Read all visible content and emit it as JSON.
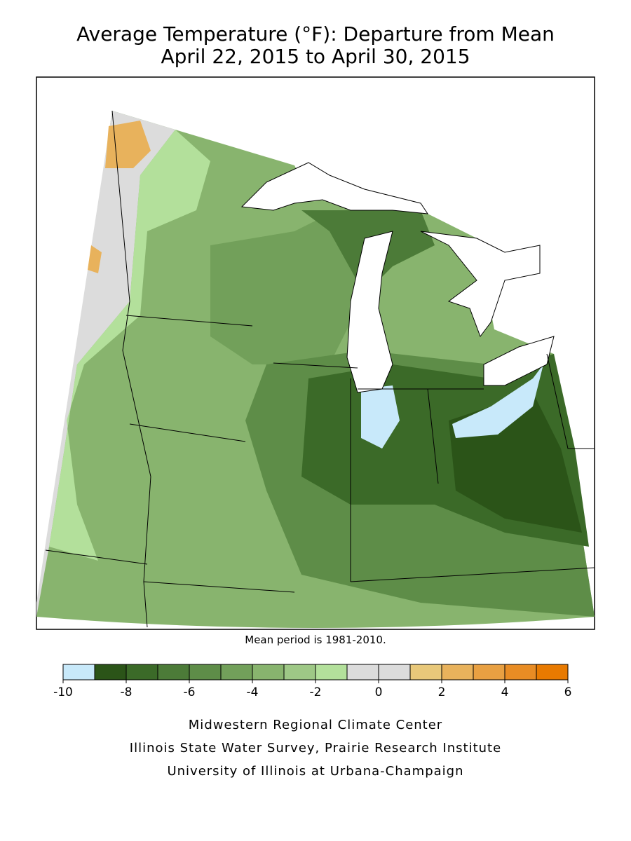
{
  "title": [
    "Average Temperature (°F): Departure from Mean",
    "April 22, 2015 to April 30, 2015"
  ],
  "note": "Mean period is 1981-2010.",
  "legend": {
    "bins": [
      -10,
      -9,
      -8,
      -7,
      -6,
      -5,
      -4,
      -3,
      -2,
      -1,
      0,
      1,
      2,
      3,
      4,
      5,
      6
    ],
    "colors": [
      "#c8e9fa",
      "#2b5418",
      "#3b6a28",
      "#4c7b38",
      "#5e8d48",
      "#72a05a",
      "#88b46e",
      "#9ec886",
      "#b3e09b",
      "#dcdcdc",
      "#dcdcdc",
      "#e8c87a",
      "#e8b25c",
      "#e8a042",
      "#e88c24",
      "#e87a00"
    ],
    "ticks": [
      -10,
      -8,
      -6,
      -4,
      -2,
      0,
      2,
      4,
      6
    ]
  },
  "credits": [
    "Midwestern Regional Climate Center",
    "Illinois State Water Survey, Prairie Research Institute",
    "University of Illinois at Urbana-Champaign"
  ]
}
